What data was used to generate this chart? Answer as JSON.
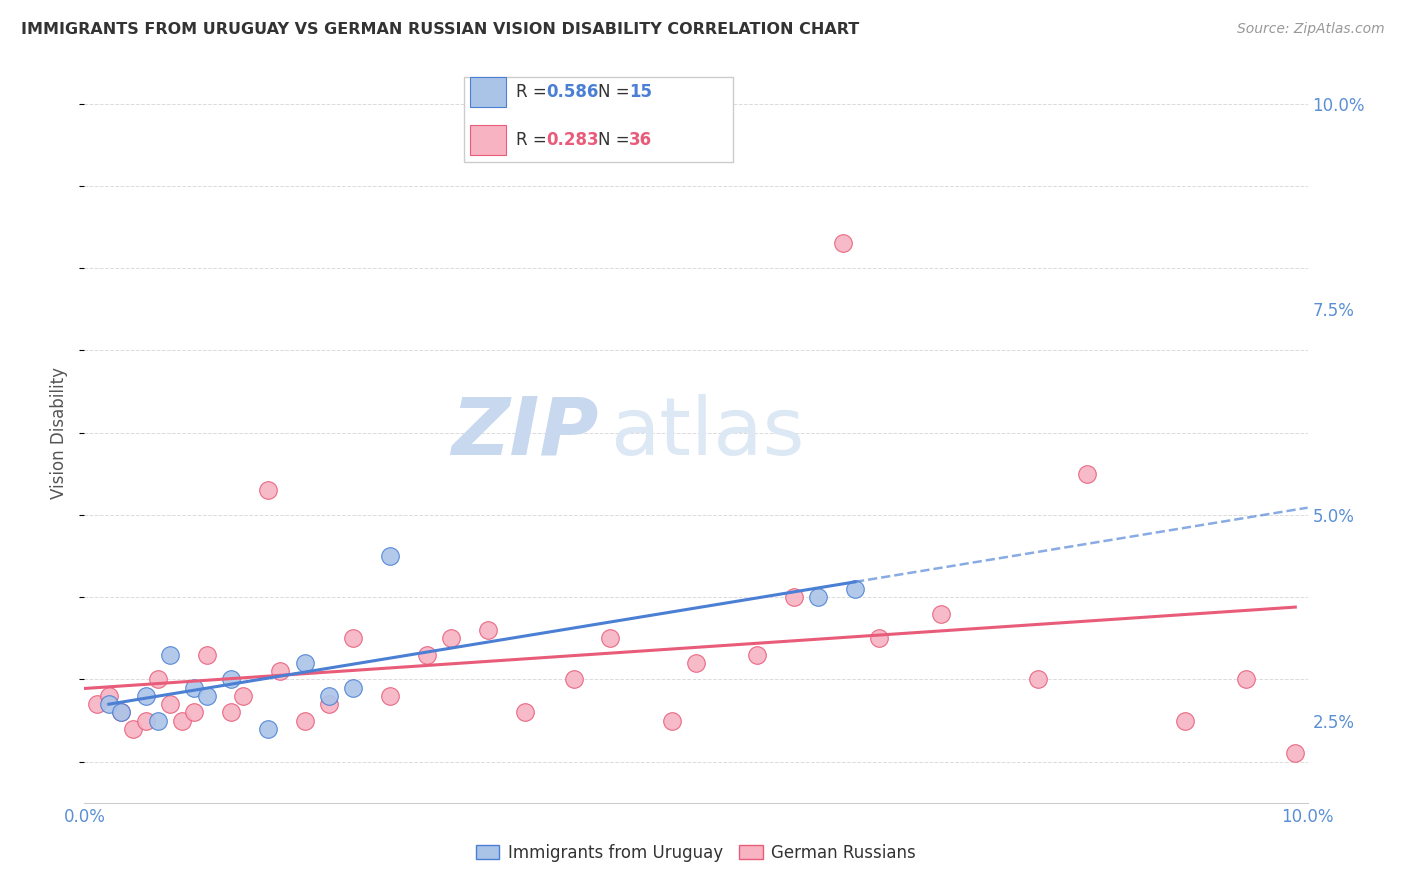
{
  "title": "IMMIGRANTS FROM URUGUAY VS GERMAN RUSSIAN VISION DISABILITY CORRELATION CHART",
  "source": "Source: ZipAtlas.com",
  "ylabel": "Vision Disability",
  "xlim": [
    0.0,
    0.1
  ],
  "ylim": [
    0.015,
    0.105
  ],
  "yticks": [
    0.025,
    0.05,
    0.075,
    0.1
  ],
  "ytick_labels": [
    "2.5%",
    "5.0%",
    "7.5%",
    "10.0%"
  ],
  "xticks": [
    0.0,
    0.025,
    0.05,
    0.075,
    0.1
  ],
  "xtick_labels": [
    "0.0%",
    "",
    "",
    "",
    "10.0%"
  ],
  "uruguay_R": "0.586",
  "uruguay_N": "15",
  "german_R": "0.283",
  "german_N": "36",
  "uruguay_color": "#aac4e8",
  "german_color": "#f7b3c2",
  "line_uruguay_color": "#4a7fd4",
  "line_german_color": "#e85c7a",
  "background_color": "#ffffff",
  "grid_color": "#cccccc",
  "watermark_zip": "ZIP",
  "watermark_atlas": "atlas",
  "uruguay_x": [
    0.002,
    0.003,
    0.005,
    0.006,
    0.007,
    0.009,
    0.01,
    0.012,
    0.015,
    0.018,
    0.02,
    0.022,
    0.025,
    0.06,
    0.063
  ],
  "uruguay_y": [
    0.027,
    0.026,
    0.028,
    0.025,
    0.033,
    0.029,
    0.028,
    0.03,
    0.024,
    0.032,
    0.028,
    0.029,
    0.045,
    0.04,
    0.041
  ],
  "german_x": [
    0.001,
    0.002,
    0.003,
    0.004,
    0.005,
    0.006,
    0.007,
    0.008,
    0.009,
    0.01,
    0.012,
    0.013,
    0.015,
    0.016,
    0.018,
    0.02,
    0.022,
    0.025,
    0.028,
    0.03,
    0.033,
    0.036,
    0.04,
    0.043,
    0.048,
    0.05,
    0.055,
    0.058,
    0.062,
    0.065,
    0.07,
    0.078,
    0.082,
    0.09,
    0.095,
    0.099
  ],
  "german_y": [
    0.027,
    0.028,
    0.026,
    0.024,
    0.025,
    0.03,
    0.027,
    0.025,
    0.026,
    0.033,
    0.026,
    0.028,
    0.053,
    0.031,
    0.025,
    0.027,
    0.035,
    0.028,
    0.033,
    0.035,
    0.036,
    0.026,
    0.03,
    0.035,
    0.025,
    0.032,
    0.033,
    0.04,
    0.083,
    0.035,
    0.038,
    0.03,
    0.055,
    0.025,
    0.03,
    0.021
  ],
  "axis_label_color": "#5b8fd4",
  "title_color": "#333333",
  "source_color": "#999999",
  "ylabel_color": "#555555",
  "legend_label_color": "#333333"
}
